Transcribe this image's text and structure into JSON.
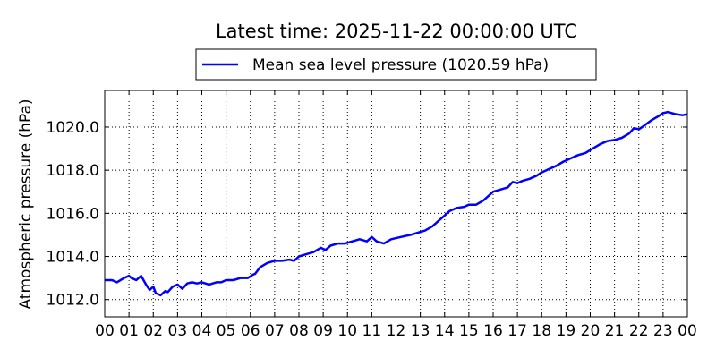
{
  "chart_data": {
    "type": "line",
    "title": "Latest time: 2025-11-22 00:00:00 UTC",
    "xlabel": "",
    "ylabel": "Atmospheric pressure (hPa)",
    "x_ticks": [
      "00",
      "01",
      "02",
      "03",
      "04",
      "05",
      "06",
      "07",
      "08",
      "09",
      "10",
      "11",
      "12",
      "13",
      "14",
      "15",
      "16",
      "17",
      "18",
      "19",
      "20",
      "21",
      "22",
      "23",
      "00"
    ],
    "xlim": [
      0,
      24
    ],
    "ylim": [
      1011.2,
      1021.7
    ],
    "y_ticks": [
      "1012.0",
      "1014.0",
      "1016.0",
      "1018.0",
      "1020.0"
    ],
    "y_tick_values": [
      1012,
      1014,
      1016,
      1018,
      1020
    ],
    "grid": true,
    "legend_position": "top-center",
    "colors": {
      "series": "#0000ff"
    },
    "series": [
      {
        "name": "Mean sea level pressure (1020.59 hPa)",
        "x": [
          0,
          0.3,
          0.5,
          0.8,
          1.0,
          1.1,
          1.3,
          1.5,
          1.7,
          1.85,
          2.0,
          2.1,
          2.3,
          2.5,
          2.6,
          2.8,
          3.0,
          3.2,
          3.4,
          3.6,
          3.8,
          4.0,
          4.3,
          4.6,
          4.8,
          5.0,
          5.3,
          5.6,
          5.9,
          6.1,
          6.2,
          6.4,
          6.7,
          7.0,
          7.3,
          7.6,
          7.8,
          8.0,
          8.3,
          8.6,
          8.9,
          9.1,
          9.3,
          9.6,
          9.9,
          10.2,
          10.5,
          10.8,
          11.0,
          11.2,
          11.5,
          11.8,
          12.2,
          12.6,
          12.9,
          13.2,
          13.5,
          13.8,
          14.0,
          14.2,
          14.5,
          14.8,
          15.0,
          15.3,
          15.6,
          15.8,
          16.0,
          16.3,
          16.6,
          16.8,
          17.0,
          17.2,
          17.5,
          17.8,
          18.0,
          18.3,
          18.6,
          18.9,
          19.2,
          19.5,
          19.8,
          20.1,
          20.4,
          20.7,
          21.0,
          21.3,
          21.6,
          21.8,
          22.0,
          22.2,
          22.5,
          22.8,
          23.0,
          23.2,
          23.5,
          23.8,
          24.0
        ],
        "y": [
          1012.9,
          1012.9,
          1012.8,
          1013.0,
          1013.1,
          1013.0,
          1012.9,
          1013.1,
          1012.7,
          1012.45,
          1012.6,
          1012.3,
          1012.2,
          1012.4,
          1012.35,
          1012.6,
          1012.7,
          1012.5,
          1012.75,
          1012.8,
          1012.75,
          1012.8,
          1012.7,
          1012.8,
          1012.8,
          1012.9,
          1012.9,
          1013.0,
          1013.0,
          1013.15,
          1013.2,
          1013.5,
          1013.7,
          1013.8,
          1013.8,
          1013.85,
          1013.8,
          1014.0,
          1014.1,
          1014.2,
          1014.4,
          1014.3,
          1014.5,
          1014.6,
          1014.6,
          1014.7,
          1014.8,
          1014.7,
          1014.9,
          1014.7,
          1014.6,
          1014.8,
          1014.9,
          1015.0,
          1015.1,
          1015.2,
          1015.4,
          1015.7,
          1015.9,
          1016.1,
          1016.25,
          1016.3,
          1016.4,
          1016.4,
          1016.6,
          1016.8,
          1017.0,
          1017.1,
          1017.2,
          1017.45,
          1017.4,
          1017.5,
          1017.6,
          1017.75,
          1017.9,
          1018.05,
          1018.2,
          1018.4,
          1018.55,
          1018.7,
          1018.8,
          1019.0,
          1019.2,
          1019.35,
          1019.4,
          1019.5,
          1019.7,
          1019.95,
          1019.9,
          1020.05,
          1020.3,
          1020.5,
          1020.65,
          1020.7,
          1020.6,
          1020.55,
          1020.59
        ]
      }
    ]
  }
}
